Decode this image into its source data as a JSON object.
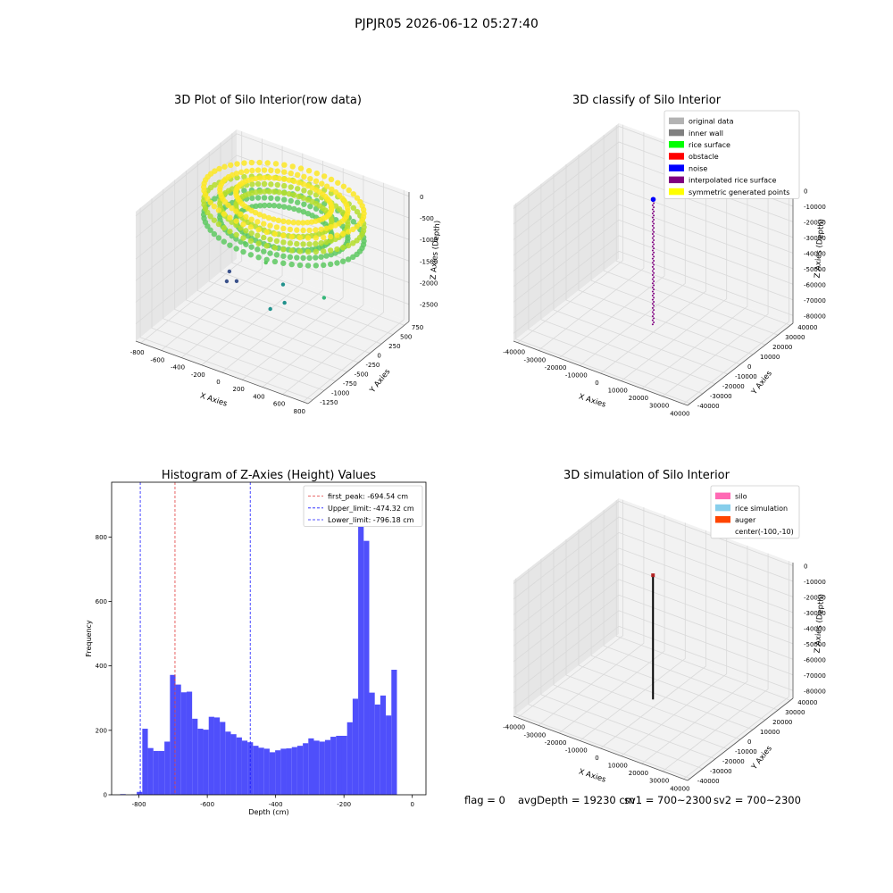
{
  "figure": {
    "suptitle": "PJPJR05 2026-06-12 05:27:40",
    "footer": {
      "flag": "flag = 0",
      "avg_depth": "avgDepth = 19230 cm",
      "sv1": "sv1 = 700~2300",
      "sv2": "sv2 = 700~2300"
    }
  },
  "colors": {
    "pane": "#f2f2f2",
    "pane_dark": "#e6e6e6",
    "grid": "#d9d9d9",
    "axis": "#555555",
    "hist_bar": "#4f4ffb",
    "peak_line": "#e23c3c",
    "limit_line": "#1a1aff",
    "viridis": [
      "#440154",
      "#3b528b",
      "#21918c",
      "#5ec962",
      "#fde725"
    ]
  },
  "chart_data": [
    {
      "id": "raw3d",
      "type": "scatter",
      "projection": "3d",
      "title": "3D Plot of Silo Interior(row data)",
      "xlabel": "X Axies",
      "ylabel": "Y Axies",
      "zlabel": "Z Axies (Depth)",
      "xlim": [
        -850,
        850
      ],
      "ylim": [
        -1350,
        850
      ],
      "zlim": [
        -2900,
        100
      ],
      "xticks": [
        -800,
        -600,
        -400,
        -200,
        0,
        200,
        400,
        600,
        800
      ],
      "yticks": [
        -1250,
        -1000,
        -750,
        -500,
        -250,
        0,
        250,
        500,
        750
      ],
      "zticks": [
        -2500,
        -2000,
        -1500,
        -1000,
        -500,
        0
      ],
      "ring": {
        "cx": 0,
        "cy": 0,
        "r_outer": 720,
        "r_inner": 430,
        "z_top": -80,
        "z_bottom": -720,
        "colormap": "viridis"
      },
      "scatter_points": [
        {
          "x": -420,
          "y": 80,
          "z": -1500,
          "color": "#5ec962"
        },
        {
          "x": -150,
          "y": -60,
          "z": -1600,
          "color": "#5ec962"
        },
        {
          "x": 650,
          "y": -560,
          "z": -1300,
          "color": "#35b779"
        },
        {
          "x": 60,
          "y": -150,
          "z": -1850,
          "color": "#21918c"
        },
        {
          "x": 170,
          "y": -360,
          "z": -2000,
          "color": "#21918c"
        },
        {
          "x": 70,
          "y": -450,
          "z": -2150,
          "color": "#21918c"
        },
        {
          "x": -650,
          "y": 250,
          "z": -2500,
          "color": "#3b528b"
        },
        {
          "x": -520,
          "y": 120,
          "z": -2500,
          "color": "#3b528b"
        },
        {
          "x": -640,
          "y": 170,
          "z": -2650,
          "color": "#3b528b"
        }
      ]
    },
    {
      "id": "classify3d",
      "type": "scatter",
      "projection": "3d",
      "title": "3D classify of Silo Interior",
      "xlabel": "X Axies",
      "ylabel": "Y Axies",
      "zlabel": "Z Axies (Depth)",
      "xlim": [
        -42000,
        42000
      ],
      "ylim": [
        -42000,
        42000
      ],
      "zlim": [
        -85000,
        2000
      ],
      "xticks": [
        -40000,
        -30000,
        -20000,
        -10000,
        0,
        10000,
        20000,
        30000,
        40000
      ],
      "yticks": [
        -40000,
        -30000,
        -20000,
        -10000,
        0,
        10000,
        20000,
        30000,
        40000
      ],
      "zticks": [
        -80000,
        -70000,
        -60000,
        -50000,
        -40000,
        -30000,
        -20000,
        -10000,
        0
      ],
      "legend": {
        "position": "upper right",
        "entries": [
          {
            "label": "original data",
            "color": "#b3b3b3"
          },
          {
            "label": "inner wall",
            "color": "#808080"
          },
          {
            "label": "rice surface",
            "color": "#00ff00"
          },
          {
            "label": "obstacle",
            "color": "#ff0000"
          },
          {
            "label": "noise",
            "color": "#0000ff"
          },
          {
            "label": "interpolated rice surface",
            "color": "#800080"
          },
          {
            "label": "symmetric generated points",
            "color": "#ffff00"
          }
        ]
      },
      "column": {
        "x": 0,
        "y": 0,
        "z_top": -1000,
        "z_bottom": -80000,
        "color": "#800080",
        "top_color": "#0000ff"
      }
    },
    {
      "id": "histogram",
      "type": "bar",
      "title": "Histogram of Z-Axies (Height) Values",
      "xlabel": "Depth (cm)",
      "ylabel": "Frequency",
      "xlim": [
        -880,
        40
      ],
      "ylim": [
        0,
        970
      ],
      "xticks": [
        -800,
        -600,
        -400,
        -200,
        0
      ],
      "yticks": [
        0,
        200,
        400,
        600,
        800
      ],
      "bin_start": -855,
      "bin_width": 16.2,
      "values": [
        2,
        0,
        1,
        9,
        205,
        145,
        136,
        136,
        165,
        372,
        342,
        318,
        320,
        236,
        205,
        202,
        242,
        240,
        226,
        196,
        188,
        178,
        168,
        163,
        152,
        146,
        143,
        132,
        138,
        143,
        144,
        148,
        152,
        160,
        175,
        168,
        165,
        170,
        180,
        183,
        183,
        225,
        298,
        920,
        788,
        317,
        280,
        308,
        246,
        388
      ],
      "legend": {
        "position": "upper right",
        "entries": [
          {
            "label": "first_peak: -694.54 cm",
            "value": -694.54,
            "color": "#e23c3c"
          },
          {
            "label": "Upper_limit: -474.32 cm",
            "value": -474.32,
            "color": "#1a1aff"
          },
          {
            "label": "Lower_limit: -796.18 cm",
            "value": -796.18,
            "color": "#1a1aff"
          }
        ]
      }
    },
    {
      "id": "simulation3d",
      "type": "line",
      "projection": "3d",
      "title": "3D simulation of Silo Interior",
      "xlabel": "X Axies",
      "ylabel": "Y Axies",
      "zlabel": "Z Axies (Depth)",
      "xlim": [
        -42000,
        42000
      ],
      "ylim": [
        -42000,
        42000
      ],
      "zlim": [
        -85000,
        2000
      ],
      "xticks": [
        -40000,
        -30000,
        -20000,
        -10000,
        0,
        10000,
        20000,
        30000,
        40000
      ],
      "yticks": [
        -40000,
        -30000,
        -20000,
        -10000,
        0,
        10000,
        20000,
        30000,
        40000
      ],
      "zticks": [
        -80000,
        -70000,
        -60000,
        -50000,
        -40000,
        -30000,
        -20000,
        -10000,
        0
      ],
      "legend": {
        "position": "upper right",
        "entries": [
          {
            "label": "silo",
            "color": "#ff69b4"
          },
          {
            "label": "rice simulation",
            "color": "#87ceeb"
          },
          {
            "label": "auger",
            "color": "#ff4500"
          },
          {
            "label": "center(-100,-10)",
            "color": ""
          }
        ]
      },
      "column": {
        "x": -100,
        "y": -10,
        "z_top": -1000,
        "z_bottom": -80000,
        "color": "#000000",
        "top_color": "#b22222"
      }
    }
  ]
}
